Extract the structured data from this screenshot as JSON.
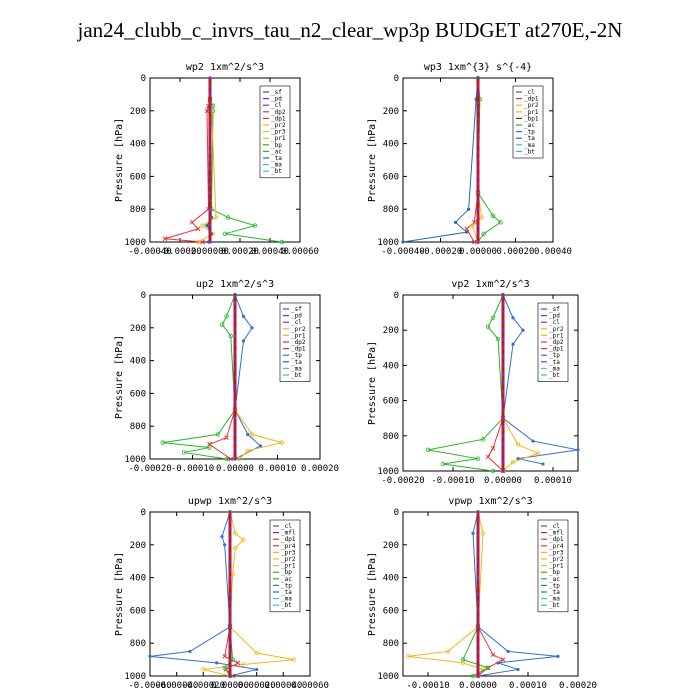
{
  "page": {
    "title": "jan24_clubb_c_invrs_tau_n2_clear_wp3p  BUDGET at270E,-2N"
  },
  "colors": {
    "sf": "#7b2fbe",
    "pd": "#7b2fbe",
    "cl": "#8b2fb5",
    "mfl": "#7b2fbe",
    "dp2": "#e8333c",
    "dp1": "#e8333c",
    "pr2": "#f7b51c",
    "pr3": "#f7b51c",
    "pr4": "#e8333c",
    "pr1": "#f7b51c",
    "bp": "#25b825",
    "ac": "#25b825",
    "tp": "#3370d4",
    "ta": "#1f6fb0",
    "ma": "#5fb0d6",
    "bt": "#27c6d6",
    "zero_line": "#c81414"
  },
  "chart_data": [
    {
      "type": "line",
      "title": "wp2  1xm^2/s^3",
      "ylabel": "Pressure [hPa]",
      "xlim": [
        -0.0004,
        0.0006
      ],
      "ylim": [
        1000,
        0
      ],
      "y_inverted": true,
      "xticks": [
        "-0.00040",
        "-0.00020",
        "0.00000",
        "0.00020",
        "0.00040",
        "0.00060"
      ],
      "yticks": [
        "0",
        "200",
        "400",
        "600",
        "800",
        "1000"
      ],
      "legend": [
        "_sf",
        "_pd",
        "_cl",
        "_dp2",
        "_dp1",
        "_pr2",
        "_pr3",
        "_pr1",
        "_bp",
        "_ac",
        "_ta",
        "_ma",
        "_bt"
      ],
      "series": [
        {
          "key": "bp",
          "marker": "circle",
          "x": [
            0,
            2e-05,
            2e-05,
            1e-05,
            0.00012,
            0.0003,
            0.0001,
            0.00048
          ],
          "y": [
            130,
            170,
            200,
            800,
            850,
            900,
            950,
            1000
          ]
        },
        {
          "key": "dp1",
          "marker": "x",
          "x": [
            0,
            -1e-05,
            -2e-05,
            -1e-05,
            -0.00012,
            -8e-05,
            -0.0003,
            -5e-05
          ],
          "y": [
            130,
            170,
            200,
            800,
            880,
            920,
            980,
            1000
          ]
        },
        {
          "key": "pr1",
          "marker": "circle",
          "x": [
            0,
            1e-05,
            4e-05,
            -5e-05,
            2e-05,
            -8e-05
          ],
          "y": [
            150,
            200,
            850,
            900,
            950,
            1000
          ]
        },
        {
          "key": "ta",
          "marker": "dot",
          "x": [
            0,
            1e-05,
            -2e-05,
            1e-05,
            -1e-05
          ],
          "y": [
            700,
            850,
            900,
            950,
            1000
          ]
        },
        {
          "key": "bt",
          "marker": "dot",
          "x": [
            0,
            0,
            0
          ],
          "y": [
            0,
            500,
            1000
          ]
        }
      ]
    },
    {
      "type": "line",
      "title": "wp3  1xm^{3} s^{-4}",
      "ylabel": "Pressure [hPa]",
      "xlim": [
        -0.0004,
        0.0004
      ],
      "ylim": [
        1000,
        0
      ],
      "y_inverted": true,
      "xticks": [
        "-0.00040",
        "-0.00020",
        "0.00000",
        "0.00020",
        "0.00040"
      ],
      "yticks": [
        "0",
        "200",
        "400",
        "600",
        "800",
        "1000"
      ],
      "legend": [
        "_cl",
        "_dp1",
        "_pr2",
        "_pr1",
        "_bp1",
        "_ac",
        "_tp",
        "_ta",
        "_ma",
        "_bt"
      ],
      "series": [
        {
          "key": "ac",
          "marker": "circle",
          "x": [
            0,
            1e-05,
            0,
            8e-05,
            0.00012,
            3e-05,
            0
          ],
          "y": [
            0,
            130,
            700,
            840,
            880,
            950,
            1000
          ]
        },
        {
          "key": "ta",
          "marker": "dot",
          "x": [
            0,
            -1e-05,
            -5e-05,
            -0.00012,
            -6e-05,
            -0.0004
          ],
          "y": [
            0,
            130,
            800,
            880,
            940,
            1000
          ]
        },
        {
          "key": "dp1",
          "marker": "x",
          "x": [
            0,
            -2e-05,
            -6e-05,
            -2e-05
          ],
          "y": [
            700,
            880,
            920,
            1000
          ]
        },
        {
          "key": "pr2",
          "marker": "circle",
          "x": [
            0,
            2e-05,
            -3e-05,
            0
          ],
          "y": [
            700,
            850,
            900,
            1000
          ]
        },
        {
          "key": "bt",
          "marker": "dot",
          "x": [
            0,
            0,
            0
          ],
          "y": [
            0,
            500,
            1000
          ]
        }
      ]
    },
    {
      "type": "line",
      "title": "up2  1xm^2/s^3",
      "ylabel": "Pressure [hPa]",
      "xlim": [
        -0.0002,
        0.0002
      ],
      "ylim": [
        1000,
        0
      ],
      "y_inverted": true,
      "xticks": [
        "-0.00020",
        "-0.00010",
        "0.00000",
        "0.00010",
        "0.00020"
      ],
      "yticks": [
        "0",
        "200",
        "400",
        "600",
        "800",
        "1000"
      ],
      "legend": [
        "_sf",
        "_pd",
        "_cl",
        "_pr2",
        "_pr1",
        "_dp2",
        "_dp1",
        "_tp",
        "_ta",
        "_ma",
        "_bt"
      ],
      "series": [
        {
          "key": "ac",
          "marker": "circle",
          "x": [
            0,
            -2e-05,
            -3e-05,
            -1e-05,
            0,
            -4e-05,
            -0.00017,
            -6e-05,
            -0.00012,
            -2e-05
          ],
          "y": [
            0,
            130,
            180,
            250,
            700,
            850,
            900,
            930,
            960,
            1000
          ]
        },
        {
          "key": "tp",
          "marker": "dot",
          "x": [
            0,
            2e-05,
            4e-05,
            2e-05,
            0,
            3e-05,
            6e-05,
            0
          ],
          "y": [
            0,
            130,
            200,
            280,
            700,
            850,
            920,
            1000
          ]
        },
        {
          "key": "pr1",
          "marker": "circle",
          "x": [
            0,
            4e-05,
            0.00011,
            3e-05,
            1e-05
          ],
          "y": [
            700,
            850,
            900,
            950,
            1000
          ]
        },
        {
          "key": "dp1",
          "marker": "x",
          "x": [
            0,
            -2e-05,
            -6e-05,
            -1e-05
          ],
          "y": [
            700,
            870,
            910,
            1000
          ]
        },
        {
          "key": "bt",
          "marker": "dot",
          "x": [
            0,
            0,
            0
          ],
          "y": [
            0,
            500,
            1000
          ]
        }
      ]
    },
    {
      "type": "line",
      "title": "vp2  1xm^2/s^3",
      "ylabel": "Pressure [hPa]",
      "xlim": [
        -0.0002,
        0.00015
      ],
      "ylim": [
        1000,
        0
      ],
      "y_inverted": true,
      "xticks": [
        "-0.00020",
        "-0.00010",
        "0.00000",
        "0.00010"
      ],
      "yticks": [
        "0",
        "200",
        "400",
        "600",
        "800",
        "1000"
      ],
      "legend": [
        "_sf",
        "_pd",
        "_cl",
        "_pr2",
        "_pr1",
        "_dp2",
        "_dp1",
        "_tp",
        "_ta",
        "_ma",
        "_bt"
      ],
      "series": [
        {
          "key": "ac",
          "marker": "circle",
          "x": [
            0,
            -2e-05,
            -3e-05,
            -1e-05,
            0,
            -4e-05,
            -0.00015,
            -5e-05,
            -0.00012,
            -2e-05
          ],
          "y": [
            0,
            130,
            180,
            250,
            700,
            820,
            880,
            930,
            960,
            1000
          ]
        },
        {
          "key": "tp",
          "marker": "dot",
          "x": [
            0,
            2e-05,
            4e-05,
            2e-05,
            0,
            6e-05,
            0.00015,
            3e-05,
            8e-05
          ],
          "y": [
            0,
            130,
            200,
            280,
            700,
            830,
            880,
            930,
            960
          ]
        },
        {
          "key": "pr1",
          "marker": "circle",
          "x": [
            0,
            3e-05,
            7e-05,
            2e-05,
            0
          ],
          "y": [
            700,
            850,
            900,
            950,
            1000
          ]
        },
        {
          "key": "dp1",
          "marker": "x",
          "x": [
            0,
            -2e-05,
            -3e-05,
            0
          ],
          "y": [
            700,
            870,
            920,
            1000
          ]
        },
        {
          "key": "bt",
          "marker": "dot",
          "x": [
            0,
            0,
            0
          ],
          "y": [
            0,
            500,
            1000
          ]
        }
      ]
    },
    {
      "type": "line",
      "title": "upwp  1xm^2/s^3",
      "ylabel": "Pressure [hPa]",
      "xlim": [
        -0.0006,
        0.0006
      ],
      "ylim": [
        1000,
        0
      ],
      "y_inverted": true,
      "xticks": [
        "-0.00060",
        "-0.00040",
        "-0.00020",
        "0.00000",
        "0.00020",
        "0.00040",
        "0.00060"
      ],
      "yticks": [
        "0",
        "200",
        "400",
        "600",
        "800",
        "1000"
      ],
      "legend": [
        "_cl",
        "_mfl",
        "_dp1",
        "_pr4",
        "_pr3",
        "_pr2",
        "_pr1",
        "_bp",
        "_ac",
        "_tp",
        "_ta",
        "_ma",
        "_bt"
      ],
      "series": [
        {
          "key": "pr1",
          "marker": "circle",
          "x": [
            0,
            4e-05,
            0.0001,
            4e-05,
            2e-05,
            0,
            0.0002,
            0.00048,
            0.0001,
            -0.0002,
            0
          ],
          "y": [
            0,
            130,
            170,
            220,
            380,
            700,
            860,
            900,
            930,
            960,
            1000
          ]
        },
        {
          "key": "tp",
          "marker": "dot",
          "x": [
            0,
            -6e-05,
            -4e-05,
            0,
            -0.0003,
            -0.0006,
            -0.0001,
            0.0002,
            0
          ],
          "y": [
            0,
            150,
            200,
            700,
            850,
            880,
            920,
            960,
            1000
          ]
        },
        {
          "key": "dp1",
          "marker": "x",
          "x": [
            0,
            -4e-05,
            6e-05,
            -3e-05,
            2e-05
          ],
          "y": [
            700,
            880,
            920,
            960,
            1000
          ]
        },
        {
          "key": "ac",
          "marker": "circle",
          "x": [
            0,
            2e-05,
            -4e-05,
            0
          ],
          "y": [
            700,
            900,
            950,
            1000
          ]
        },
        {
          "key": "bt",
          "marker": "dot",
          "x": [
            0,
            0,
            0
          ],
          "y": [
            0,
            500,
            1000
          ]
        }
      ]
    },
    {
      "type": "line",
      "title": "vpwp  1xm^2/s^3",
      "ylabel": "Pressure [hPa]",
      "xlim": [
        -0.00015,
        0.0002
      ],
      "ylim": [
        1000,
        0
      ],
      "y_inverted": true,
      "xticks": [
        "-0.00010",
        "0.00000",
        "0.00010",
        "0.00020"
      ],
      "yticks": [
        "0",
        "200",
        "400",
        "600",
        "800",
        "1000"
      ],
      "legend": [
        "_cl",
        "_mfl",
        "_dp1",
        "_pr4",
        "_pr3",
        "_pr2",
        "_pr1",
        "_bp",
        "_ac",
        "_tp",
        "_ta",
        "_ma",
        "_bt"
      ],
      "series": [
        {
          "key": "pr1",
          "marker": "circle",
          "x": [
            0,
            1e-05,
            0,
            -6e-05,
            -0.00014,
            -3e-05,
            1e-05,
            0
          ],
          "y": [
            0,
            130,
            700,
            850,
            880,
            920,
            960,
            1000
          ]
        },
        {
          "key": "tp",
          "marker": "dot",
          "x": [
            0,
            -1e-05,
            0,
            6e-05,
            0.00016,
            4e-05,
            8e-05,
            0
          ],
          "y": [
            0,
            130,
            700,
            850,
            880,
            920,
            960,
            1000
          ]
        },
        {
          "key": "dp1",
          "marker": "x",
          "x": [
            0,
            3e-05,
            5e-05,
            2e-05,
            0
          ],
          "y": [
            700,
            870,
            900,
            950,
            1000
          ]
        },
        {
          "key": "ac",
          "marker": "circle",
          "x": [
            0,
            -3e-05,
            2e-05,
            -1e-05
          ],
          "y": [
            700,
            900,
            950,
            1000
          ]
        },
        {
          "key": "bt",
          "marker": "dot",
          "x": [
            0,
            0,
            0
          ],
          "y": [
            0,
            500,
            1000
          ]
        }
      ]
    }
  ]
}
